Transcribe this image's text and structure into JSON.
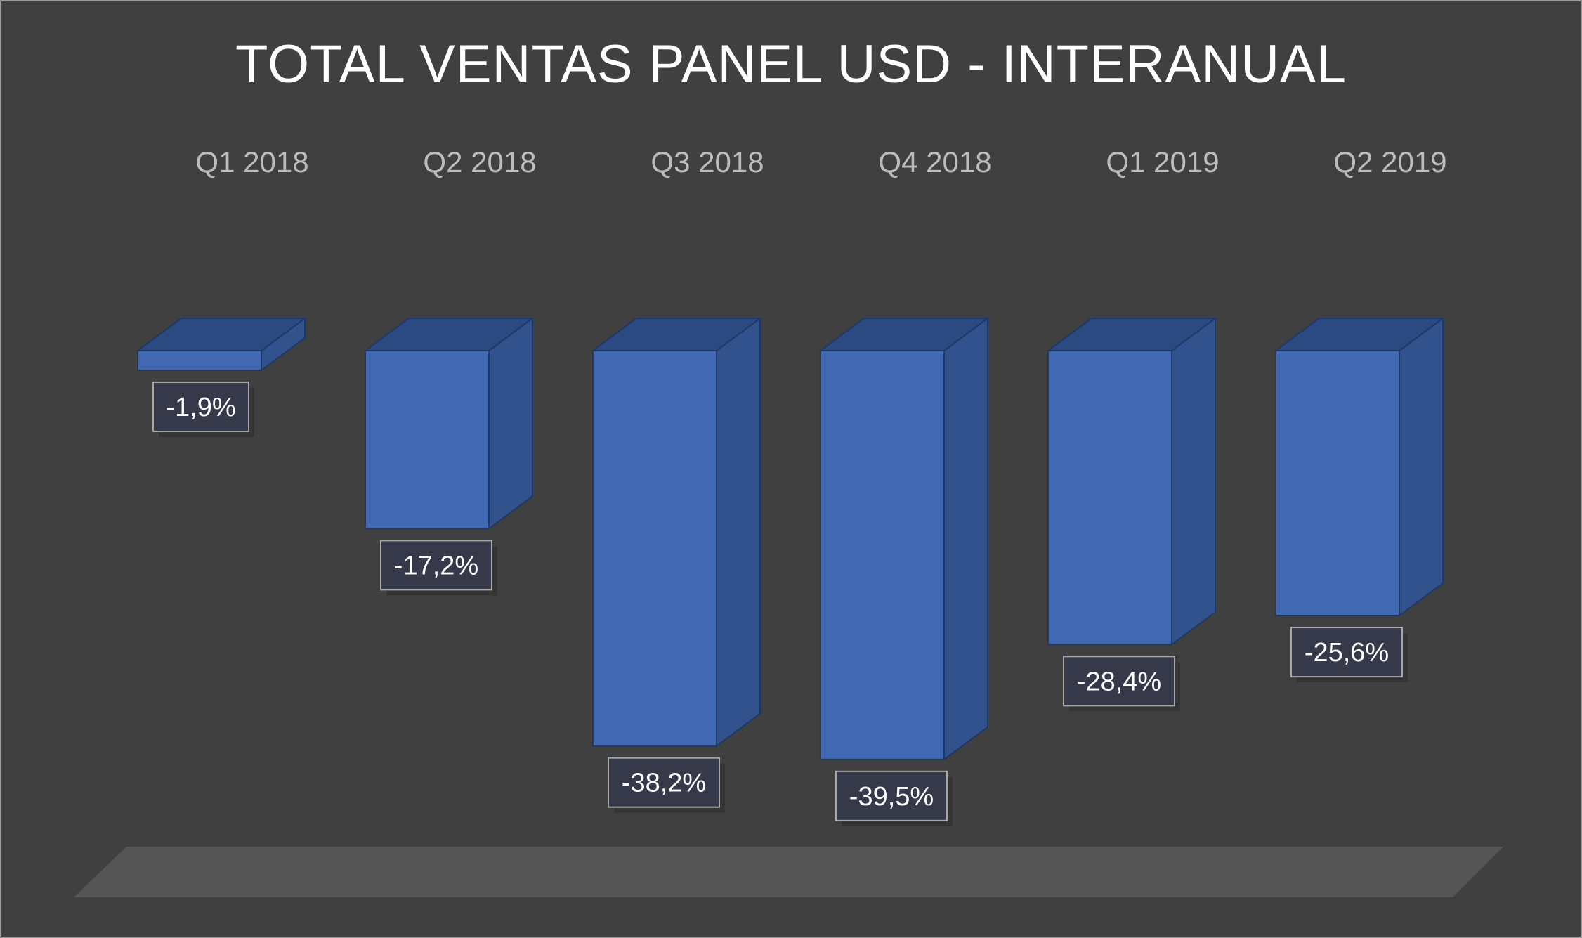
{
  "chart_data": {
    "type": "bar",
    "title": "TOTAL VENTAS PANEL USD - INTERANUAL",
    "categories": [
      "Q1 2018",
      "Q2 2018",
      "Q3 2018",
      "Q4 2018",
      "Q1 2019",
      "Q2 2019"
    ],
    "values": [
      -1.9,
      -17.2,
      -38.2,
      -39.5,
      -28.4,
      -25.6
    ],
    "data_labels": [
      "-1,9%",
      "-17,2%",
      "-38,2%",
      "-39,5%",
      "-28,4%",
      "-25,6%"
    ],
    "style": "3d-column",
    "grid": false,
    "legend": "none",
    "colors": {
      "background": "#404040",
      "bar_front": "#4169b3",
      "bar_side": "#31528d",
      "bar_top": "#2c4a82",
      "bar_edge": "#1f3864",
      "label_box": "#35394a",
      "label_border": "#a8a8a8",
      "floor": "#555555"
    }
  }
}
